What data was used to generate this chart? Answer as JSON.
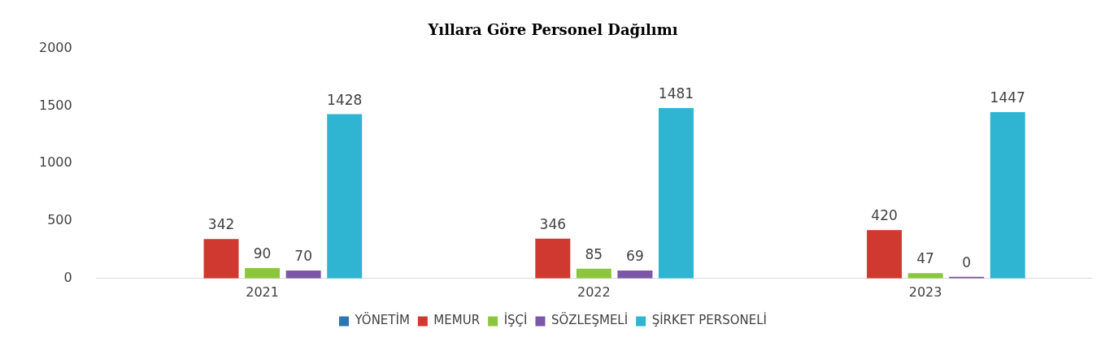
{
  "chart_data": {
    "type": "bar",
    "title": "Yıllara Göre Personel Dağılımı",
    "categories": [
      "2021",
      "2022",
      "2023"
    ],
    "series": [
      {
        "name": "YÖNETİM",
        "color": "#2e75b6",
        "values": [
          null,
          null,
          null
        ]
      },
      {
        "name": "MEMUR",
        "color": "#d0392f",
        "values": [
          342,
          346,
          420
        ]
      },
      {
        "name": "İŞÇİ",
        "color": "#8cc63f",
        "values": [
          90,
          85,
          47
        ]
      },
      {
        "name": "SÖZLEŞMELİ",
        "color": "#7b57a8",
        "values": [
          70,
          69,
          0
        ]
      },
      {
        "name": "ŞİRKET PERSONELİ",
        "color": "#2fb5d2",
        "values": [
          1428,
          1481,
          1447
        ]
      }
    ],
    "ylim": [
      0,
      2000
    ],
    "yticks": [
      0,
      500,
      1000,
      1500,
      2000
    ],
    "grid": false,
    "legend": "bottom",
    "data_labels": true
  }
}
